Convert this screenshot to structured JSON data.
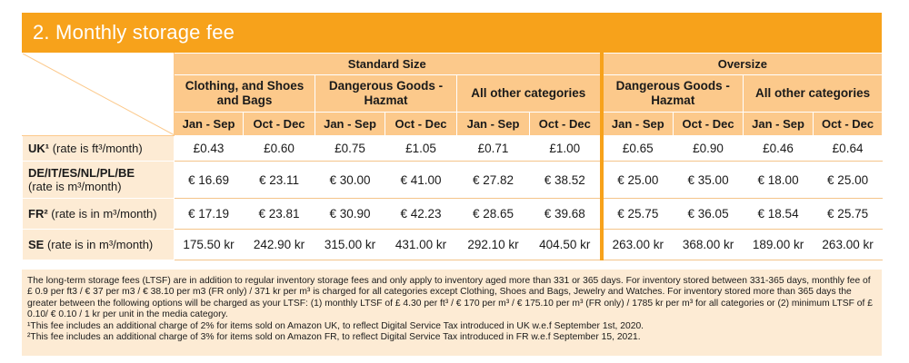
{
  "title": "2. Monthly storage fee",
  "groups": {
    "standard": "Standard Size",
    "oversize": "Oversize"
  },
  "categories": {
    "clothing": "Clothing, and Shoes and Bags",
    "hazmat_std": "Dangerous Goods - Hazmat",
    "other_std": "All other categories",
    "hazmat_over": "Dangerous Goods - Hazmat",
    "other_over": "All other categories"
  },
  "periods": [
    "Jan - Sep",
    "Oct - Dec",
    "Jan - Sep",
    "Oct - Dec",
    "Jan - Sep",
    "Oct - Dec",
    "Jan - Sep",
    "Oct - Dec",
    "Jan - Sep",
    "Oct - Dec"
  ],
  "rows": [
    {
      "market": "UK¹",
      "rate": " (rate is ft³/month)",
      "values": [
        "£0.43",
        "£0.60",
        "£0.75",
        "£1.05",
        "£0.71",
        "£1.00",
        "£0.65",
        "£0.90",
        "£0.46",
        "£0.64"
      ]
    },
    {
      "market": "DE/IT/ES/NL/PL/BE",
      "rate": "(rate is m³/month)",
      "values": [
        "€ 16.69",
        "€ 23.11",
        "€ 30.00",
        "€ 41.00",
        "€ 27.82",
        "€ 38.52",
        "€ 25.00",
        "€ 35.00",
        "€ 18.00",
        "€ 25.00"
      ]
    },
    {
      "market": "FR²",
      "rate": " (rate is in m³/month)",
      "values": [
        "€ 17.19",
        "€ 23.81",
        "€ 30.90",
        "€ 42.23",
        "€ 28.65",
        "€ 39.68",
        "€ 25.75",
        "€ 36.05",
        "€ 18.54",
        "€ 25.75"
      ]
    },
    {
      "market": "SE",
      "rate": " (rate is in m³/month)",
      "values": [
        "175.50 kr",
        "242.90 kr",
        "315.00 kr",
        "431.00 kr",
        "292.10 kr",
        "404.50 kr",
        "263.00 kr",
        "368.00 kr",
        "189.00 kr",
        "263.00 kr"
      ]
    }
  ],
  "notes": {
    "main": "The long-term storage fees (LTSF) are in addition to regular inventory storage fees and only apply to inventory aged more than 331 or 365 days. For inventory stored between 331-365 days, monthly fee of £ 0.9 per ft3 / € 37 per m3 / € 38.10 per m3 (FR only) / 371 kr per m³ is charged for all categories except Clothing, Shoes and Bags, Jewelry and Watches. For inventory stored more than 365 days the greater between the following options will be charged as your LTSF: (1) monthly LTSF of £ 4.30 per ft³ / € 170 per m³ / € 175.10 per m³ (FR only) / 1785 kr per m³ for all categories or (2) minimum LTSF of £ 0.10/ € 0.10 / 1 kr per unit in the media category.",
    "footnote1": "¹This fee includes an additional charge of 2% for items sold on Amazon UK, to reflect Digital Service Tax introduced in UK w.e.f September 1st, 2020.",
    "footnote2": "²This fee includes an additional charge of 3% for items sold on Amazon FR, to reflect Digital Service Tax introduced in FR w.e.f September 15, 2021."
  },
  "colors": {
    "title_bar": "#f7a21b",
    "header_bg": "#fcc98b",
    "label_bg": "#fdebd4",
    "notes_bg": "#fdebd4"
  }
}
